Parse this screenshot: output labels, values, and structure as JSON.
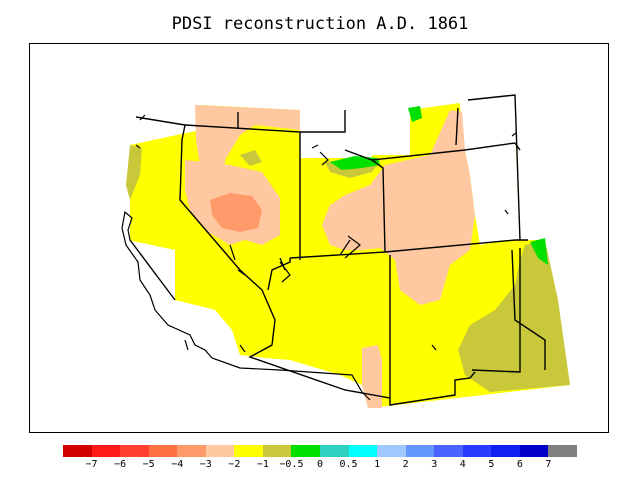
{
  "title": "PDSI reconstruction A.D. 1861",
  "colors": {
    "darkred": "#e00000",
    "red": "#ff2020",
    "red2": "#ff4a3a",
    "orange1": "#ff7a50",
    "orange2": "#ffa070",
    "peach": "#f8c8a0",
    "tan": "#ffbf95",
    "yellow": "#ffff00",
    "olive": "#c8c83a",
    "green": "#00e000",
    "teal": "#30d0c0",
    "cyan": "#00ffff",
    "lightblue": "#a0c8ff",
    "blue1": "#6496ff",
    "blue2": "#4a64ff",
    "blue3": "#2a3cff",
    "blue4": "#1020f0",
    "darkblue": "#0000c8",
    "gray": "#808080"
  },
  "legend": {
    "labels": [
      "−7",
      "−6",
      "−5",
      "−4",
      "−3",
      "−2",
      "−1",
      "−0.5",
      "0",
      "0.5",
      "1",
      "2",
      "3",
      "4",
      "5",
      "6",
      "7"
    ],
    "swatch_colors": [
      "#d00000",
      "#ff1a1a",
      "#ff4030",
      "#ff7040",
      "#ff9a6a",
      "#ffc8a0",
      "#ffff00",
      "#c8c83a",
      "#00e000",
      "#30d0c0",
      "#00ffff",
      "#a0c8ff",
      "#6496ff",
      "#4a64ff",
      "#2a3cff",
      "#1020f0",
      "#0000c8",
      "#808080"
    ]
  }
}
